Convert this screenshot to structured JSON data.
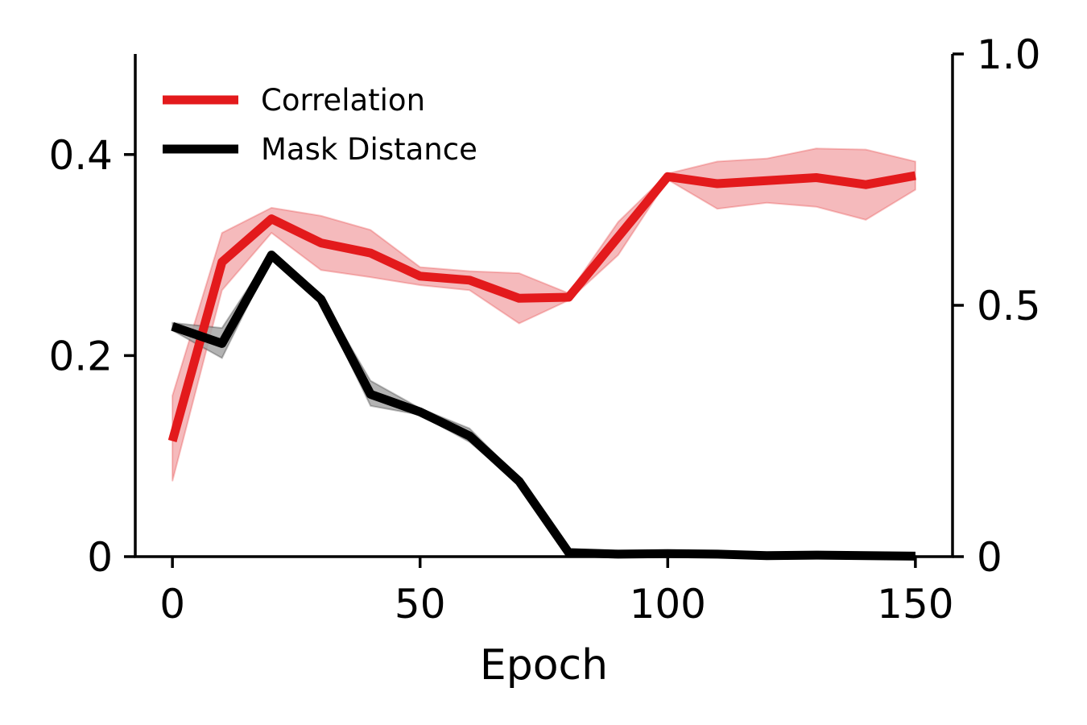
{
  "chart_data": {
    "type": "line",
    "xlabel": "Epoch",
    "xlim": [
      -7.5,
      157.5
    ],
    "x_ticks": [
      {
        "value": 0,
        "label": "0"
      },
      {
        "value": 50,
        "label": "50"
      },
      {
        "value": 100,
        "label": "100"
      },
      {
        "value": 150,
        "label": "150"
      }
    ],
    "ylim_left": [
      0,
      0.5
    ],
    "y_ticks_left": [
      {
        "value": 0,
        "label": "0"
      },
      {
        "value": 0.2,
        "label": "0.2"
      },
      {
        "value": 0.4,
        "label": "0.4"
      }
    ],
    "ylim_right": [
      0,
      1.0
    ],
    "y_ticks_right": [
      {
        "value": 0,
        "label": "0"
      },
      {
        "value": 0.5,
        "label": "0.5"
      },
      {
        "value": 1.0,
        "label": "1.0"
      }
    ],
    "grid": false,
    "legend_position": "top-left",
    "series": [
      {
        "name": "Correlation",
        "axis": "left",
        "color": "#e31a1c",
        "band_color": "#f4b6b8",
        "x": [
          0,
          10,
          20,
          30,
          40,
          50,
          60,
          70,
          80,
          90,
          100,
          110,
          120,
          130,
          140,
          150
        ],
        "y": [
          0.115,
          0.293,
          0.336,
          0.312,
          0.302,
          0.279,
          0.275,
          0.257,
          0.258,
          0.318,
          0.378,
          0.371,
          0.374,
          0.377,
          0.37,
          0.379
        ],
        "y_lower": [
          0.075,
          0.265,
          0.322,
          0.285,
          0.278,
          0.27,
          0.265,
          0.232,
          0.255,
          0.3,
          0.375,
          0.346,
          0.352,
          0.348,
          0.335,
          0.365
        ],
        "y_upper": [
          0.16,
          0.322,
          0.347,
          0.339,
          0.325,
          0.288,
          0.284,
          0.282,
          0.262,
          0.333,
          0.381,
          0.393,
          0.396,
          0.406,
          0.405,
          0.393
        ]
      },
      {
        "name": "Mask Distance",
        "axis": "right",
        "color": "#000000",
        "band_color": "#a6a6a6",
        "x": [
          0,
          10,
          20,
          30,
          40,
          50,
          60,
          70,
          80,
          90,
          100,
          110,
          120,
          130,
          140,
          150
        ],
        "y": [
          0.458,
          0.424,
          0.6,
          0.512,
          0.323,
          0.288,
          0.24,
          0.15,
          0.008,
          0.005,
          0.006,
          0.005,
          0.002,
          0.003,
          0.002,
          0.001
        ],
        "y_lower": [
          0.45,
          0.395,
          0.595,
          0.505,
          0.3,
          0.282,
          0.228,
          0.145,
          0.006,
          0.004,
          0.005,
          0.004,
          0.002,
          0.002,
          0.001,
          0.0
        ],
        "y_upper": [
          0.465,
          0.455,
          0.605,
          0.518,
          0.35,
          0.295,
          0.255,
          0.156,
          0.01,
          0.006,
          0.007,
          0.006,
          0.003,
          0.004,
          0.003,
          0.002
        ]
      }
    ]
  }
}
